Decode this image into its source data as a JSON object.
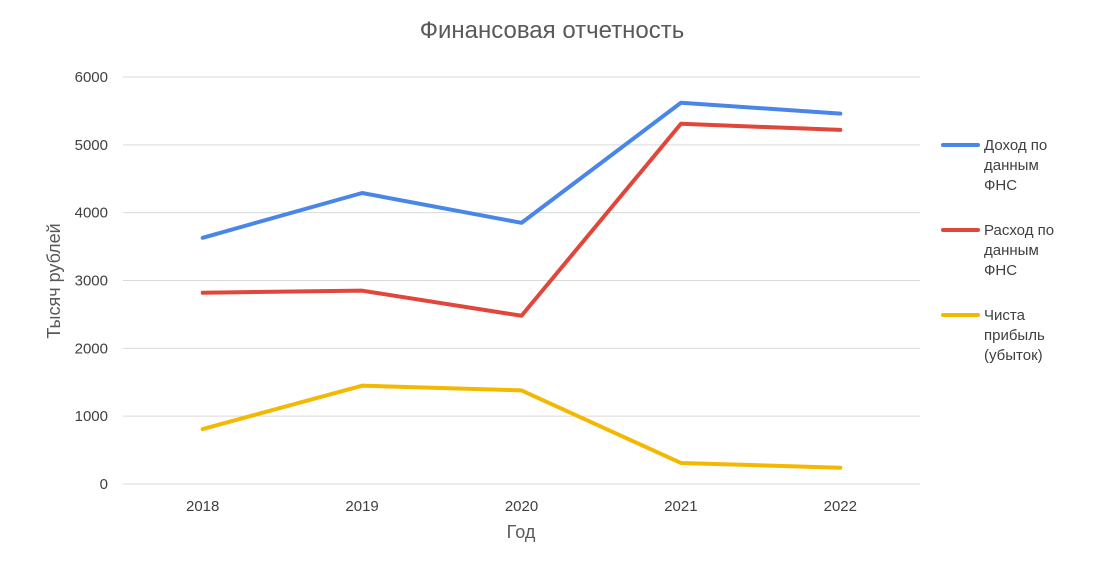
{
  "chart_data": {
    "type": "line",
    "title": "Финансовая отчетность",
    "xlabel": "Год",
    "ylabel": "Тысяч рублей",
    "categories": [
      "2018",
      "2019",
      "2020",
      "2021",
      "2022"
    ],
    "ylim": [
      0,
      6000
    ],
    "yticks": [
      0,
      1000,
      2000,
      3000,
      4000,
      5000,
      6000
    ],
    "grid": true,
    "legend_position": "right",
    "series": [
      {
        "name": "Доход по данным ФНС",
        "name_lines": [
          "Доход по",
          "данным",
          "ФНС"
        ],
        "color": "#4a86e8",
        "values": [
          3630,
          4290,
          3850,
          5620,
          5460
        ]
      },
      {
        "name": "Расход по данным ФНС",
        "name_lines": [
          "Расход по",
          "данным",
          "ФНС"
        ],
        "color": "#e0463a",
        "values": [
          2820,
          2850,
          2480,
          5310,
          5220
        ]
      },
      {
        "name": "Чиста прибыль (убыток)",
        "name_lines": [
          "Чиста",
          "прибыль",
          "(убыток)"
        ],
        "color": "#f5b800",
        "values": [
          810,
          1450,
          1380,
          310,
          240
        ]
      }
    ]
  }
}
